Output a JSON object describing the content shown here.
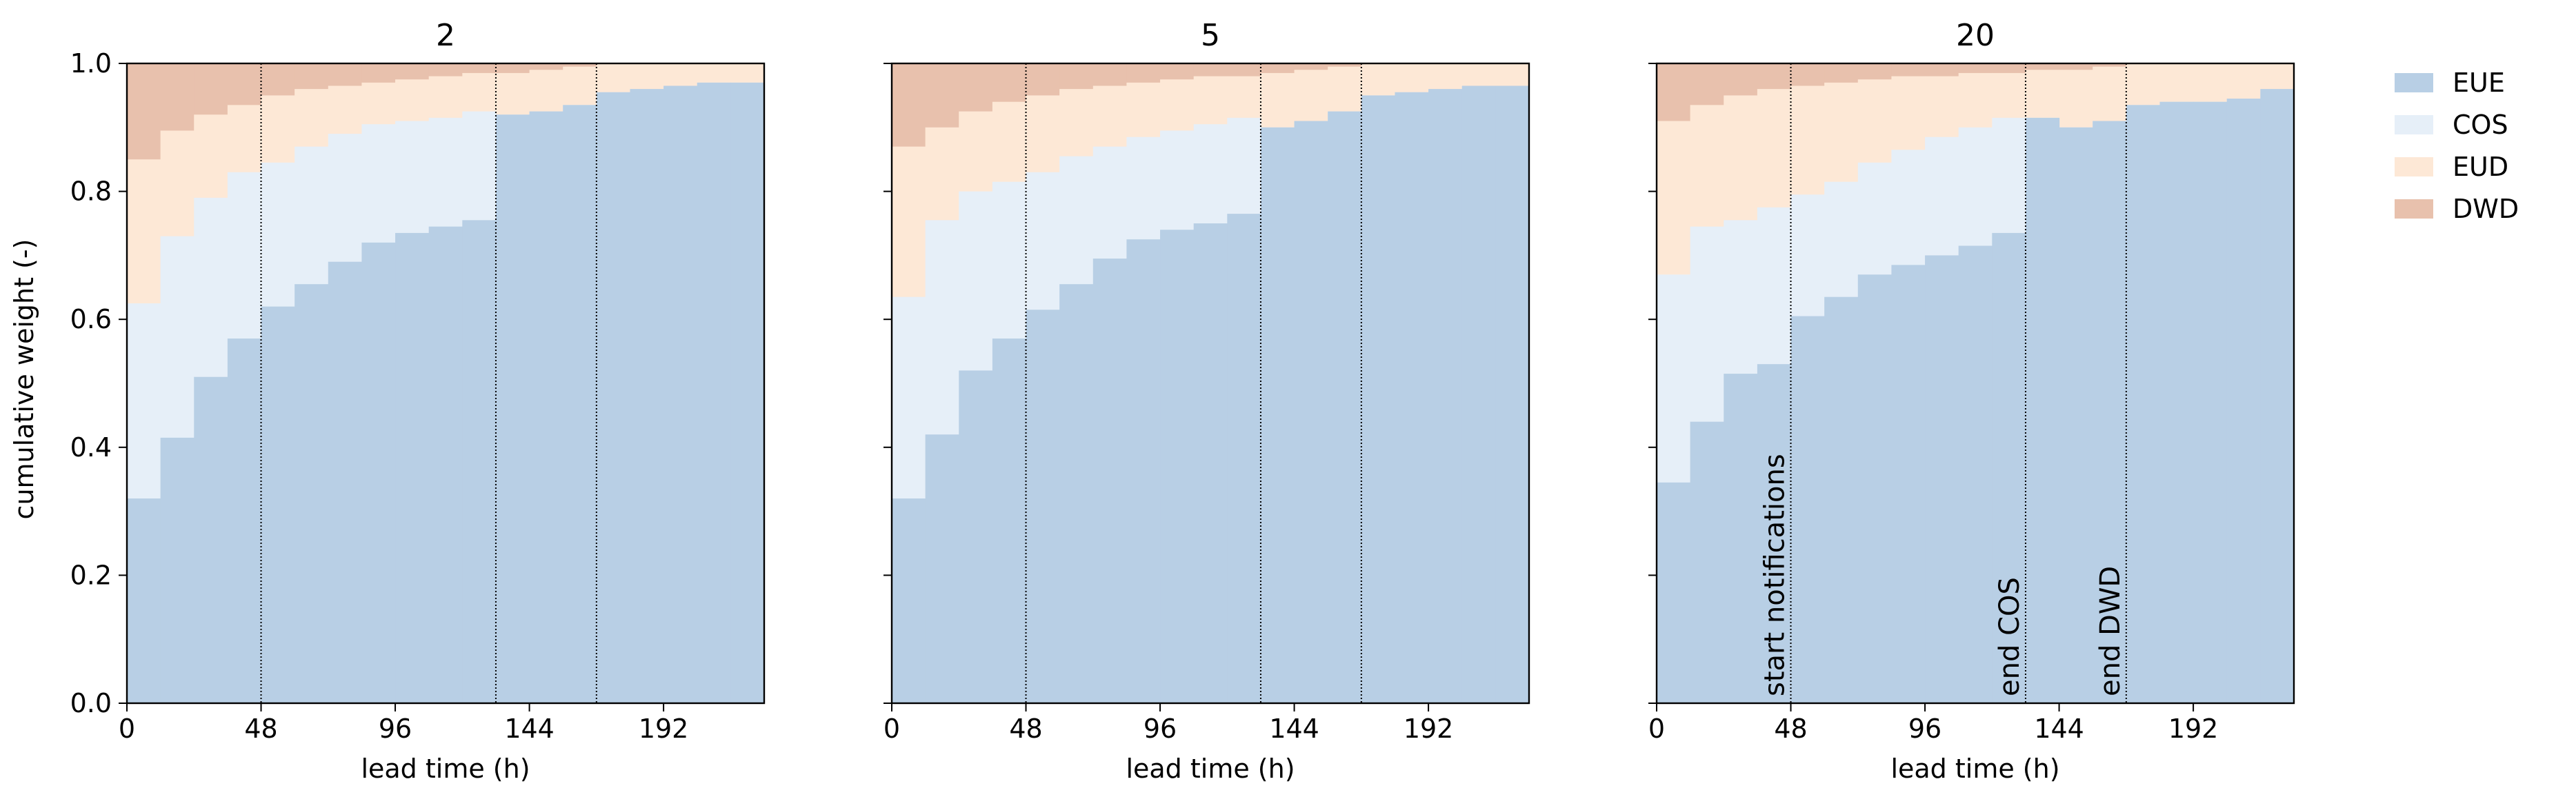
{
  "chart_data": {
    "type": "area",
    "ylabel": "cumulative weight (-)",
    "xlabel": "lead time (h)",
    "xlim": [
      0,
      228
    ],
    "ylim": [
      0,
      1
    ],
    "x_ticks": [
      0,
      48,
      96,
      144,
      192
    ],
    "y_ticks": [
      "0.0",
      "0.2",
      "0.4",
      "0.6",
      "0.8",
      "1.0"
    ],
    "grid": false,
    "legend_position": "right",
    "legend": [
      {
        "name": "EUE",
        "color": "#b8cfe5"
      },
      {
        "name": "COS",
        "color": "#e6eff8"
      },
      {
        "name": "EUD",
        "color": "#fde8d6"
      },
      {
        "name": "DWD",
        "color": "#e8c1ad"
      }
    ],
    "step_hours": 12,
    "vlines": [
      48,
      132,
      168
    ],
    "panels": [
      {
        "title": "2",
        "series": [
          {
            "name": "EUE",
            "values": [
              0.32,
              0.415,
              0.51,
              0.57,
              0.62,
              0.655,
              0.69,
              0.72,
              0.735,
              0.745,
              0.755,
              0.92,
              0.925,
              0.935,
              0.955,
              0.96,
              0.965,
              0.97,
              0.97
            ]
          },
          {
            "name": "COS",
            "values": [
              0.625,
              0.73,
              0.79,
              0.83,
              0.845,
              0.87,
              0.89,
              0.905,
              0.91,
              0.915,
              0.925,
              0.92,
              0.925,
              0.935,
              0.955,
              0.96,
              0.965,
              0.97,
              0.97
            ]
          },
          {
            "name": "EUD",
            "values": [
              0.85,
              0.895,
              0.92,
              0.935,
              0.95,
              0.96,
              0.965,
              0.97,
              0.975,
              0.98,
              0.985,
              0.985,
              0.99,
              0.995,
              1.0,
              1.0,
              1.0,
              1.0,
              1.0
            ]
          },
          {
            "name": "DWD",
            "values": [
              1,
              1,
              1,
              1,
              1,
              1,
              1,
              1,
              1,
              1,
              1,
              1,
              1,
              1,
              1,
              1,
              1,
              1,
              1
            ]
          }
        ]
      },
      {
        "title": "5",
        "series": [
          {
            "name": "EUE",
            "values": [
              0.32,
              0.42,
              0.52,
              0.57,
              0.615,
              0.655,
              0.695,
              0.725,
              0.74,
              0.75,
              0.765,
              0.9,
              0.91,
              0.925,
              0.95,
              0.955,
              0.96,
              0.965,
              0.965
            ]
          },
          {
            "name": "COS",
            "values": [
              0.635,
              0.755,
              0.8,
              0.815,
              0.83,
              0.855,
              0.87,
              0.885,
              0.895,
              0.905,
              0.915,
              0.9,
              0.91,
              0.925,
              0.95,
              0.955,
              0.96,
              0.965,
              0.965
            ]
          },
          {
            "name": "EUD",
            "values": [
              0.87,
              0.9,
              0.925,
              0.94,
              0.95,
              0.96,
              0.965,
              0.97,
              0.975,
              0.98,
              0.98,
              0.985,
              0.99,
              0.995,
              1.0,
              1.0,
              1.0,
              1.0,
              1.0
            ]
          },
          {
            "name": "DWD",
            "values": [
              1,
              1,
              1,
              1,
              1,
              1,
              1,
              1,
              1,
              1,
              1,
              1,
              1,
              1,
              1,
              1,
              1,
              1,
              1
            ]
          }
        ]
      },
      {
        "title": "20",
        "series": [
          {
            "name": "EUE",
            "values": [
              0.345,
              0.44,
              0.515,
              0.53,
              0.605,
              0.635,
              0.67,
              0.685,
              0.7,
              0.715,
              0.735,
              0.915,
              0.9,
              0.91,
              0.935,
              0.94,
              0.94,
              0.945,
              0.96
            ]
          },
          {
            "name": "COS",
            "values": [
              0.67,
              0.745,
              0.755,
              0.775,
              0.795,
              0.815,
              0.845,
              0.865,
              0.885,
              0.9,
              0.915,
              0.915,
              0.9,
              0.91,
              0.935,
              0.94,
              0.94,
              0.945,
              0.96
            ]
          },
          {
            "name": "EUD",
            "values": [
              0.91,
              0.935,
              0.95,
              0.96,
              0.965,
              0.97,
              0.975,
              0.98,
              0.98,
              0.985,
              0.985,
              0.99,
              0.99,
              0.995,
              1.0,
              1.0,
              1.0,
              1.0,
              1.0
            ]
          },
          {
            "name": "DWD",
            "values": [
              1,
              1,
              1,
              1,
              1,
              1,
              1,
              1,
              1,
              1,
              1,
              1,
              1,
              1,
              1,
              1,
              1,
              1,
              1
            ]
          }
        ],
        "annotations": [
          {
            "x": 48,
            "text": "start notifications"
          },
          {
            "x": 132,
            "text": "end COS"
          },
          {
            "x": 168,
            "text": "end DWD"
          }
        ]
      }
    ]
  }
}
